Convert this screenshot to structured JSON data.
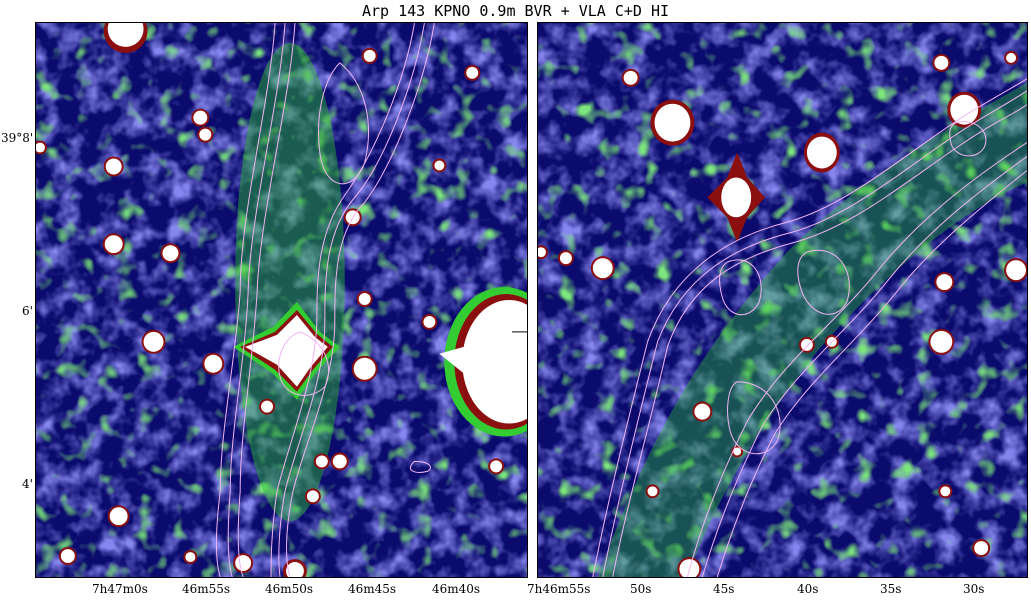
{
  "title": "Arp 143 KPNO 0.9m BVR + VLA C+D HI",
  "colors": {
    "background_dark": "#0b0b6e",
    "background_mid": "#3d3ddc",
    "emission_green": "#33cc33",
    "emission_red": "#8b0f0f",
    "saturated_white": "#ffffff",
    "contour_color": "#f2b6f2"
  },
  "left_panel": {
    "y_tick_labels": [
      "39°8'",
      "6'",
      "4'"
    ],
    "x_tick_labels": [
      "7h47m0s",
      "46m55s",
      "46m50s",
      "46m45s",
      "46m40s"
    ]
  },
  "right_panel": {
    "x_tick_labels": [
      "7h46m55s",
      "50s",
      "45s",
      "40s",
      "35s",
      "30s"
    ]
  }
}
